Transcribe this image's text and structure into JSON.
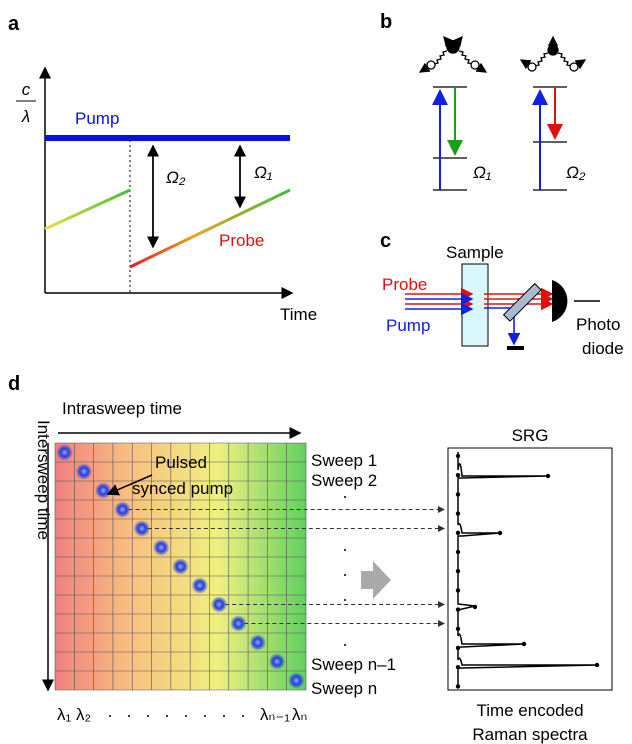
{
  "panel_a": {
    "letter": "a",
    "y_label_top": "c",
    "y_label_bottom": "λ",
    "pump": "Pump",
    "probe": "Probe",
    "omega2": "Ω₂",
    "omega1": "Ω₁",
    "x_label": "Time"
  },
  "panel_b": {
    "letter": "b",
    "omega1": "Ω₁",
    "omega2": "Ω₂"
  },
  "panel_c": {
    "letter": "c",
    "sample": "Sample",
    "probe": "Probe",
    "pump": "Pump",
    "detector_line1": "Photo",
    "detector_line2": "diode"
  },
  "panel_d": {
    "letter": "d",
    "x_axis": "Intrasweep time",
    "y_axis": "Intersweep time",
    "annotation_line1": "Pulsed",
    "annotation_line2": "synced pump",
    "sweeps": [
      "Sweep 1",
      "Sweep 2",
      "Sweep n–1",
      "Sweep n"
    ],
    "wavelengths": [
      "λ₁",
      "λ₂",
      "λₙ₋₁",
      "λₙ"
    ],
    "spectrum_title": "SRG",
    "caption_line1": "Time encoded",
    "caption_line2": "Raman spectra"
  }
}
